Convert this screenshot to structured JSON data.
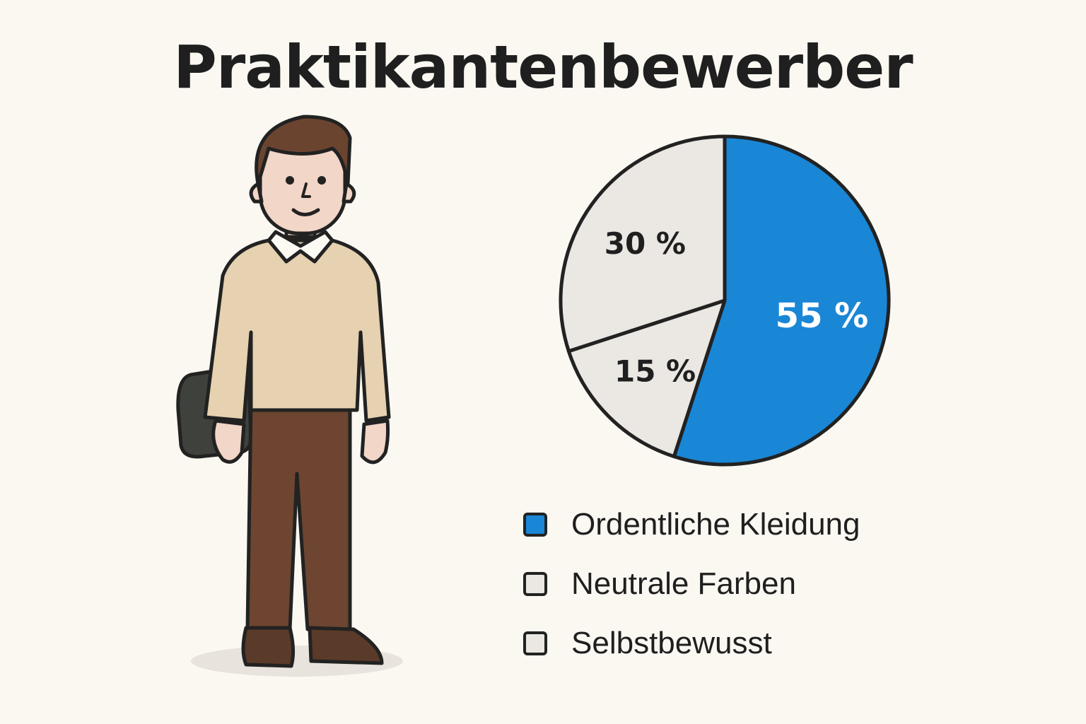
{
  "title": "Praktikantenbewerber",
  "colors": {
    "blue": "#1a86d6",
    "grey": "#ebe7e3",
    "outline": "#222222"
  },
  "chart_data": {
    "type": "pie",
    "title": "Praktikantenbewerber",
    "slices": [
      {
        "value": 55,
        "label": "55 %",
        "color": "#1a86d6"
      },
      {
        "value": 15,
        "label": "15 %",
        "color": "#ebe7e3"
      },
      {
        "value": 30,
        "label": "30 %",
        "color": "#ebe7e3"
      }
    ],
    "legend": [
      {
        "label": "Ordentliche Kleidung",
        "color": "#1a86d6"
      },
      {
        "label": "Neutrale Farben",
        "color": "#ebe7e3"
      },
      {
        "label": "Selbstbewusst",
        "color": "#ebe7e3"
      }
    ],
    "legend_position": "bottom-right"
  }
}
